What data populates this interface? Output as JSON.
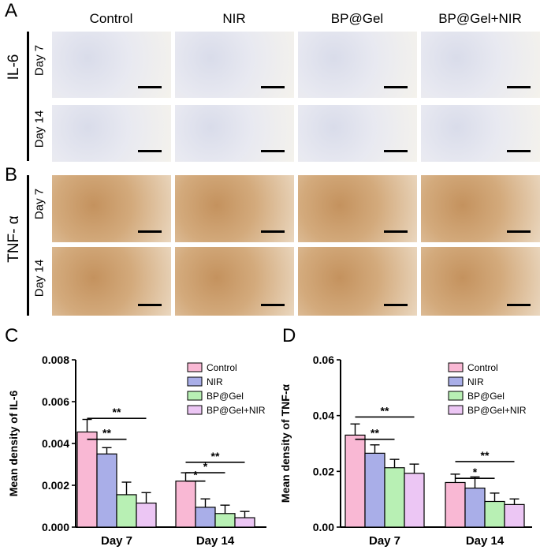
{
  "panel_a": {
    "letter": "A",
    "group_label": "IL-6",
    "rows": [
      {
        "label": "Day 7",
        "tone": "blue"
      },
      {
        "label": "Day 14",
        "tone": "blue"
      }
    ]
  },
  "panel_b": {
    "letter": "B",
    "group_label": "TNF- α",
    "rows": [
      {
        "label": "Day 7",
        "tone": "brown"
      },
      {
        "label": "Day 14",
        "tone": "brown"
      }
    ]
  },
  "columns": [
    "Control",
    "NIR",
    "BP@Gel",
    "BP@Gel+NIR"
  ],
  "panel_c": {
    "letter": "C"
  },
  "panel_d": {
    "letter": "D"
  },
  "colors": {
    "Control": "#f9b8d4",
    "NIR": "#a9aee8",
    "BP@Gel": "#b8f0b4",
    "BP@Gel+NIR": "#ecc6f4",
    "blue_stain": "#e3e5ee",
    "brown_stain": "#cfa272"
  },
  "chart_data": [
    {
      "type": "bar",
      "ylabel": "Mean density of IL-6",
      "ylim": [
        0,
        0.008
      ],
      "yticks": [
        "0.000",
        "0.002",
        "0.004",
        "0.006",
        "0.008"
      ],
      "categories": [
        "Day 7",
        "Day 14"
      ],
      "series": [
        {
          "name": "Control",
          "values": [
            0.00455,
            0.0022
          ],
          "errors": [
            0.0006,
            0.0004
          ]
        },
        {
          "name": "NIR",
          "values": [
            0.0035,
            0.00095
          ],
          "errors": [
            0.0003,
            0.0004
          ]
        },
        {
          "name": "BP@Gel",
          "values": [
            0.00155,
            0.00065
          ],
          "errors": [
            0.0006,
            0.0004
          ]
        },
        {
          "name": "BP@Gel+NIR",
          "values": [
            0.00115,
            0.00045
          ],
          "errors": [
            0.0005,
            0.0003
          ]
        }
      ],
      "legend_position": "top-right",
      "significance": [
        {
          "category": "Day 7",
          "from": "Control",
          "to": "BP@Gel",
          "label": "**",
          "y": 0.0042
        },
        {
          "category": "Day 7",
          "from": "Control",
          "to": "BP@Gel+NIR",
          "label": "**",
          "y": 0.0052
        },
        {
          "category": "Day 14",
          "from": "Control",
          "to": "NIR",
          "label": "*",
          "y": 0.0022
        },
        {
          "category": "Day 14",
          "from": "Control",
          "to": "BP@Gel",
          "label": "*",
          "y": 0.0026
        },
        {
          "category": "Day 14",
          "from": "Control",
          "to": "BP@Gel+NIR",
          "label": "**",
          "y": 0.0031
        }
      ]
    },
    {
      "type": "bar",
      "ylabel": "Mean density of TNF-α",
      "ylim": [
        0,
        0.06
      ],
      "yticks": [
        "0.00",
        "0.02",
        "0.04",
        "0.06"
      ],
      "categories": [
        "Day 7",
        "Day 14"
      ],
      "series": [
        {
          "name": "Control",
          "values": [
            0.033,
            0.016
          ],
          "errors": [
            0.004,
            0.003
          ]
        },
        {
          "name": "NIR",
          "values": [
            0.0265,
            0.014
          ],
          "errors": [
            0.003,
            0.004
          ]
        },
        {
          "name": "BP@Gel",
          "values": [
            0.0213,
            0.0092
          ],
          "errors": [
            0.003,
            0.003
          ]
        },
        {
          "name": "BP@Gel+NIR",
          "values": [
            0.0193,
            0.0081
          ],
          "errors": [
            0.0033,
            0.002
          ]
        }
      ],
      "legend_position": "top-right",
      "significance": [
        {
          "category": "Day 7",
          "from": "Control",
          "to": "BP@Gel",
          "label": "**",
          "y": 0.0315
        },
        {
          "category": "Day 7",
          "from": "Control",
          "to": "BP@Gel+NIR",
          "label": "**",
          "y": 0.0395
        },
        {
          "category": "Day 14",
          "from": "Control",
          "to": "BP@Gel",
          "label": "*",
          "y": 0.0175
        },
        {
          "category": "Day 14",
          "from": "Control",
          "to": "BP@Gel+NIR",
          "label": "**",
          "y": 0.0235
        }
      ]
    }
  ]
}
